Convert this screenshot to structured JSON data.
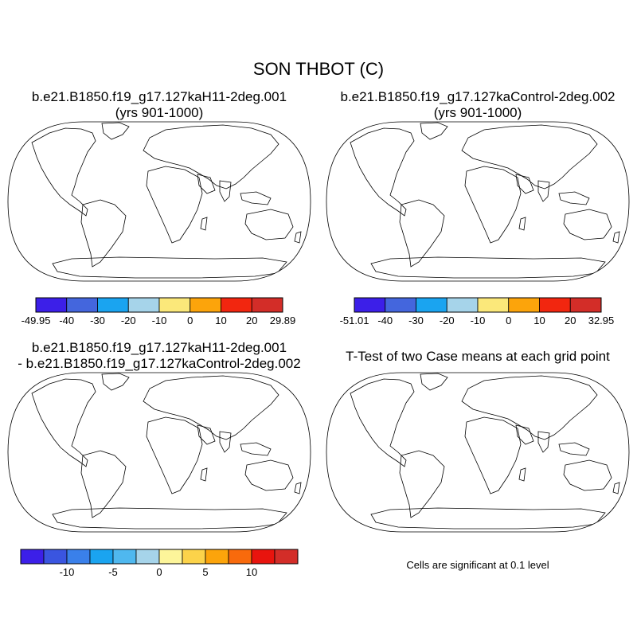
{
  "title": "SON THBOT (C)",
  "panels": [
    {
      "title_line1": "b.e21.B1850.f19_g17.127kaH11-2deg.001",
      "title_line2": "(yrs 901-1000)",
      "colorbar": {
        "labels": [
          "-49.95",
          "-40",
          "-30",
          "-20",
          "-10",
          "0",
          "10",
          "20",
          "29.89"
        ],
        "colors": [
          "#3c1fe8",
          "#4466dd",
          "#1aa4f0",
          "#a6d4ea",
          "#fbe87a",
          "#fca40b",
          "#f2260f",
          "#d32d28"
        ]
      }
    },
    {
      "title_line1": "b.e21.B1850.f19_g17.127kaControl-2deg.002",
      "title_line2": "(yrs 901-1000)",
      "colorbar": {
        "labels": [
          "-51.01",
          "-40",
          "-30",
          "-20",
          "-10",
          "0",
          "10",
          "20",
          "32.95"
        ],
        "colors": [
          "#3c1fe8",
          "#4466dd",
          "#1aa4f0",
          "#a6d4ea",
          "#fbe87a",
          "#fca40b",
          "#f2260f",
          "#d32d28"
        ]
      }
    },
    {
      "title_line1": "b.e21.B1850.f19_g17.127kaH11-2deg.001",
      "title_line2": "- b.e21.B1850.f19_g17.127kaControl-2deg.002",
      "colorbar": {
        "labels": [
          "-10",
          "-5",
          "0",
          "5",
          "10"
        ],
        "colors": [
          "#3c1fe8",
          "#3a55e0",
          "#3a80ea",
          "#1aa4f0",
          "#4fb8ef",
          "#a6d4ea",
          "#fdf59a",
          "#fcd34a",
          "#fca40b",
          "#f86a0c",
          "#e8140e",
          "#d32d28"
        ]
      }
    },
    {
      "title_line1": "T-Test of two Case means at each grid point",
      "note": "Cells are significant at 0.1 level"
    }
  ]
}
